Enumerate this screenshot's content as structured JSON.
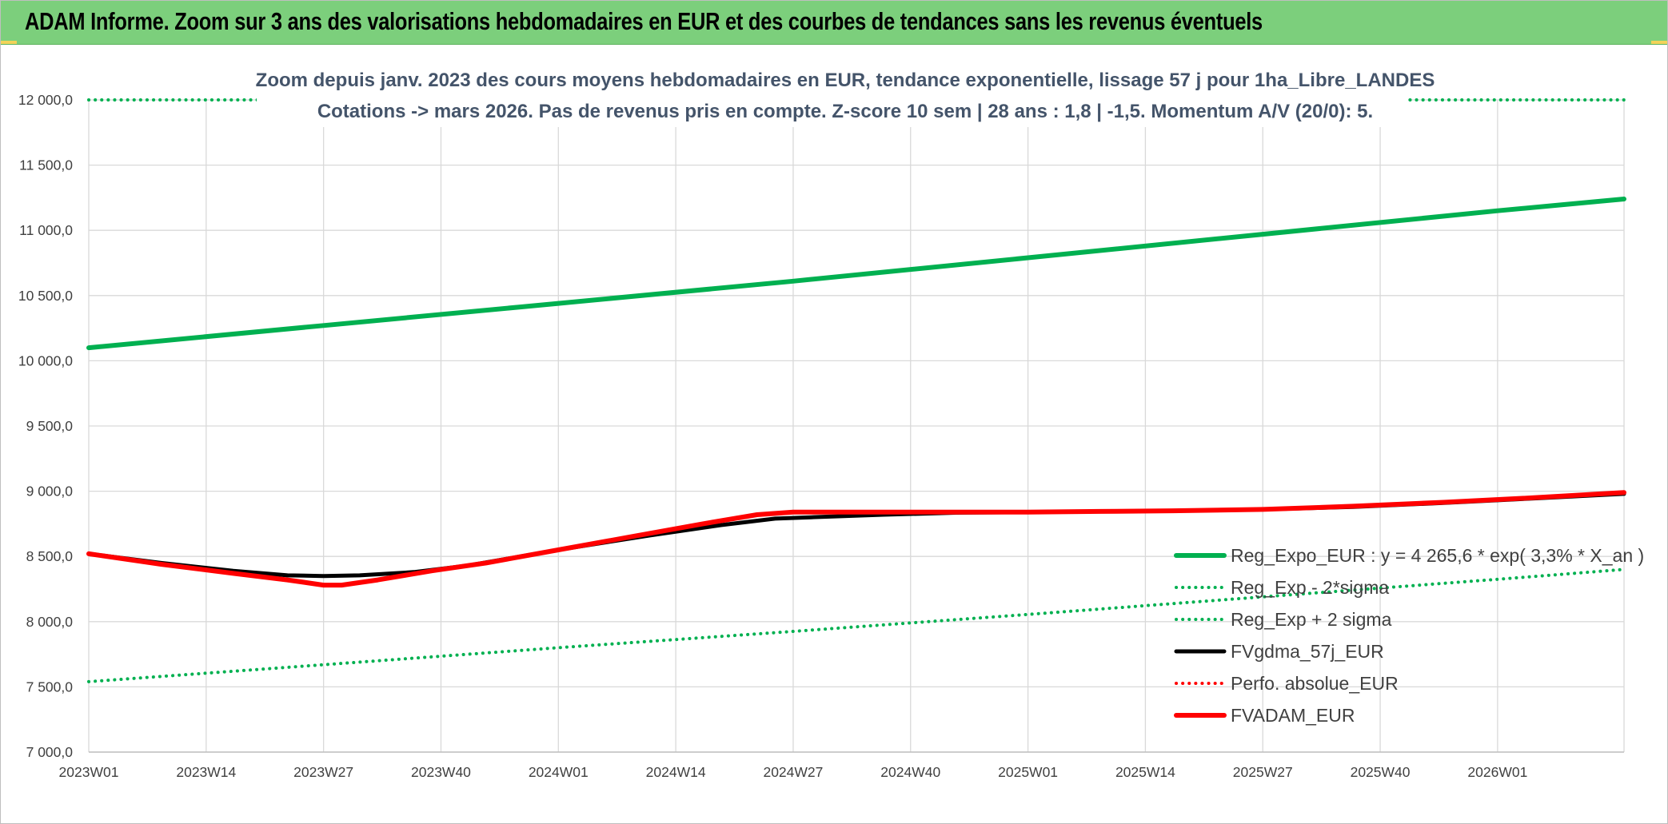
{
  "header": {
    "title": "ADAM Informe. Zoom sur 3 ans des valorisations hebdomadaires en EUR et des courbes de tendances sans les revenus éventuels"
  },
  "chart_data": {
    "type": "line",
    "title_line1": "Zoom depuis janv. 2023 des cours moyens hebdomadaires en EUR, tendance exponentielle, lissage 57 j pour 1ha_Libre_LANDES",
    "title_line2": "Cotations -> mars 2026. Pas de revenus pris en compte. Z-score 10 sem | 28 ans : 1,8 | -1,5. Momentum A/V (20/0): 5.",
    "xlabel": "",
    "ylabel": "",
    "ylim": [
      7000,
      12000
    ],
    "y_ticks": [
      7000,
      7500,
      8000,
      8500,
      9000,
      9500,
      10000,
      10500,
      11000,
      11500,
      12000
    ],
    "y_tick_labels": [
      "7 000,0",
      "7 500,0",
      "8 000,0",
      "8 500,0",
      "9 000,0",
      "9 500,0",
      "10 000,0",
      "10 500,0",
      "11 000,0",
      "11 500,0",
      "12 000,0"
    ],
    "x_tick_labels": [
      "2023W01",
      "2023W14",
      "2023W27",
      "2023W40",
      "2024W01",
      "2024W14",
      "2024W27",
      "2024W40",
      "2025W01",
      "2025W14",
      "2025W27",
      "2025W40",
      "2026W01"
    ],
    "x_tick_index": [
      0,
      13,
      26,
      39,
      52,
      65,
      78,
      91,
      104,
      117,
      130,
      143,
      156
    ],
    "x_range": [
      0,
      170
    ],
    "grid": true,
    "legend_position": "right",
    "series": [
      {
        "name": "Reg_Expo_EUR : y = 4 265,6 * exp( 3,3% *  X_an )",
        "color": "#00b050",
        "style": "solid",
        "width": 6,
        "x": [
          0,
          26,
          52,
          78,
          104,
          130,
          156,
          170
        ],
        "y": [
          10100,
          10270,
          10440,
          10610,
          10790,
          10970,
          11150,
          11240
        ]
      },
      {
        "name": "Reg_Exp - 2*sigma",
        "color": "#00b050",
        "style": "dotted",
        "width": 4,
        "x": [
          0,
          26,
          52,
          78,
          104,
          130,
          156,
          170
        ],
        "y": [
          7540,
          7670,
          7800,
          7925,
          8055,
          8190,
          8325,
          8400
        ]
      },
      {
        "name": "Reg_Exp + 2 sigma",
        "color": "#00b050",
        "style": "dotted",
        "width": 4,
        "x": [
          0,
          19,
          148,
          170
        ],
        "y": [
          12000,
          12000,
          12000,
          12000
        ]
      },
      {
        "name": "FVgdma_57j_EUR",
        "color": "#000000",
        "style": "solid",
        "width": 5,
        "x": [
          0,
          8,
          16,
          22,
          26,
          30,
          36,
          42,
          52,
          62,
          70,
          76,
          80,
          88,
          96,
          104,
          112,
          120,
          130,
          140,
          150,
          160,
          170
        ],
        "y": [
          8520,
          8450,
          8390,
          8355,
          8350,
          8355,
          8380,
          8430,
          8550,
          8660,
          8740,
          8790,
          8800,
          8820,
          8835,
          8840,
          8845,
          8850,
          8860,
          8880,
          8910,
          8945,
          8980
        ]
      },
      {
        "name": "Perfo. absolue_EUR",
        "color": "#ff0000",
        "style": "dotted",
        "width": 4,
        "x": [],
        "y": []
      },
      {
        "name": "FVADAM_EUR",
        "color": "#ff0000",
        "style": "solid",
        "width": 6,
        "x": [
          0,
          8,
          16,
          22,
          26,
          28,
          32,
          38,
          44,
          52,
          60,
          68,
          74,
          78,
          82,
          88,
          96,
          104,
          112,
          120,
          130,
          140,
          150,
          160,
          170
        ],
        "y": [
          8520,
          8440,
          8370,
          8320,
          8280,
          8280,
          8320,
          8390,
          8450,
          8550,
          8650,
          8750,
          8820,
          8840,
          8840,
          8840,
          8840,
          8840,
          8845,
          8850,
          8860,
          8885,
          8915,
          8950,
          8990
        ]
      }
    ]
  }
}
